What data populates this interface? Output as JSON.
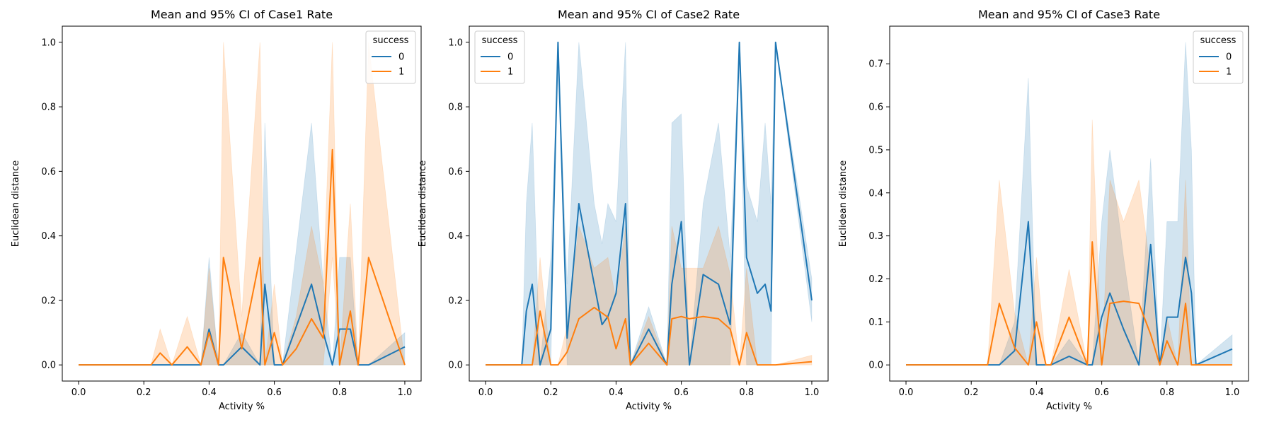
{
  "colors": {
    "series0": "#1f77b4",
    "series1": "#ff7f0e",
    "band0": "#1f77b4",
    "band1": "#ff7f0e"
  },
  "chart_data": [
    {
      "type": "line",
      "title": "Mean and 95% CI of Case1 Rate",
      "xlabel": "Activity %",
      "ylabel": "Euclidean distance",
      "xlim": [
        -0.05,
        1.05
      ],
      "ylim": [
        -0.05,
        1.05
      ],
      "xticks": [
        0.0,
        0.2,
        0.4,
        0.6,
        0.8,
        1.0
      ],
      "xtick_labels": [
        "0.0",
        "0.2",
        "0.4",
        "0.6",
        "0.8",
        "1.0"
      ],
      "yticks": [
        0.0,
        0.2,
        0.4,
        0.6,
        0.8,
        1.0
      ],
      "ytick_labels": [
        "0.0",
        "0.2",
        "0.4",
        "0.6",
        "0.8",
        "1.0"
      ],
      "legend": {
        "title": "success",
        "location": "upper right"
      },
      "series": [
        {
          "name": "0",
          "color": "#1f77b4",
          "x": [
            0.0,
            0.222,
            0.375,
            0.4,
            0.429,
            0.444,
            0.5,
            0.556,
            0.571,
            0.6,
            0.625,
            0.714,
            0.75,
            0.778,
            0.8,
            0.833,
            0.857,
            0.889,
            1.0
          ],
          "y": [
            0.0,
            0.0,
            0.0,
            0.111,
            0.0,
            0.0,
            0.056,
            0.0,
            0.25,
            0.0,
            0.0,
            0.25,
            0.1,
            0.0,
            0.111,
            0.111,
            0.0,
            0.0,
            0.056
          ],
          "ci_low": [
            0.0,
            0.0,
            0.0,
            0.0,
            0.0,
            0.0,
            0.0,
            0.0,
            0.0,
            0.0,
            0.0,
            0.0,
            0.0,
            0.0,
            0.0,
            0.0,
            0.0,
            0.0,
            0.0
          ],
          "ci_high": [
            0.0,
            0.0,
            0.0,
            0.333,
            0.0,
            0.0,
            0.1,
            0.0,
            0.75,
            0.0,
            0.0,
            0.75,
            0.25,
            0.0,
            0.333,
            0.333,
            0.0,
            0.0,
            0.1
          ]
        },
        {
          "name": "1",
          "color": "#ff7f0e",
          "x": [
            0.0,
            0.2,
            0.222,
            0.25,
            0.286,
            0.333,
            0.375,
            0.4,
            0.429,
            0.444,
            0.5,
            0.556,
            0.571,
            0.6,
            0.625,
            0.667,
            0.714,
            0.75,
            0.778,
            0.8,
            0.833,
            0.857,
            0.889,
            1.0
          ],
          "y": [
            0.0,
            0.0,
            0.0,
            0.037,
            0.0,
            0.056,
            0.0,
            0.1,
            0.0,
            0.333,
            0.05,
            0.333,
            0.0,
            0.1,
            0.0,
            0.05,
            0.143,
            0.083,
            0.667,
            0.0,
            0.167,
            0.0,
            0.333,
            0.0
          ],
          "ci_low": [
            0.0,
            0.0,
            0.0,
            0.0,
            0.0,
            0.0,
            0.0,
            0.0,
            0.0,
            0.0,
            0.0,
            0.0,
            0.0,
            0.0,
            0.0,
            0.0,
            0.0,
            0.0,
            0.333,
            0.0,
            0.0,
            0.0,
            0.0,
            0.0
          ],
          "ci_high": [
            0.0,
            0.0,
            0.0,
            0.111,
            0.0,
            0.15,
            0.0,
            0.3,
            0.0,
            1.0,
            0.15,
            1.0,
            0.0,
            0.25,
            0.0,
            0.15,
            0.43,
            0.25,
            1.0,
            0.0,
            0.5,
            0.0,
            1.0,
            0.0
          ]
        }
      ]
    },
    {
      "type": "line",
      "title": "Mean and 95% CI of Case2 Rate",
      "xlabel": "Activity %",
      "ylabel": "Euclidean distance",
      "xlim": [
        -0.05,
        1.05
      ],
      "ylim": [
        -0.05,
        1.05
      ],
      "xticks": [
        0.0,
        0.2,
        0.4,
        0.6,
        0.8,
        1.0
      ],
      "xtick_labels": [
        "0.0",
        "0.2",
        "0.4",
        "0.6",
        "0.8",
        "1.0"
      ],
      "yticks": [
        0.0,
        0.2,
        0.4,
        0.6,
        0.8,
        1.0
      ],
      "ytick_labels": [
        "0.0",
        "0.2",
        "0.4",
        "0.6",
        "0.8",
        "1.0"
      ],
      "legend": {
        "title": "success",
        "location": "upper left"
      },
      "series": [
        {
          "name": "0",
          "color": "#1f77b4",
          "x": [
            0.0,
            0.111,
            0.125,
            0.143,
            0.167,
            0.2,
            0.222,
            0.25,
            0.286,
            0.333,
            0.357,
            0.375,
            0.4,
            0.429,
            0.444,
            0.5,
            0.556,
            0.571,
            0.6,
            0.625,
            0.667,
            0.714,
            0.75,
            0.778,
            0.8,
            0.833,
            0.857,
            0.875,
            0.889,
            1.0
          ],
          "y": [
            0.0,
            0.0,
            0.167,
            0.25,
            0.0,
            0.111,
            1.0,
            0.083,
            0.5,
            0.25,
            0.125,
            0.15,
            0.222,
            0.5,
            0.0,
            0.111,
            0.0,
            0.25,
            0.444,
            0.0,
            0.28,
            0.25,
            0.125,
            1.0,
            0.333,
            0.222,
            0.25,
            0.167,
            1.0,
            0.2
          ],
          "ci_low": [
            0.0,
            0.0,
            0.0,
            0.0,
            0.0,
            0.0,
            1.0,
            0.0,
            0.0,
            0.0,
            0.0,
            0.0,
            0.0,
            0.0,
            0.0,
            0.0,
            0.0,
            0.0,
            0.0,
            0.0,
            0.0,
            0.0,
            0.0,
            1.0,
            0.0,
            0.0,
            0.0,
            0.0,
            1.0,
            0.133
          ],
          "ci_high": [
            0.0,
            0.0,
            0.5,
            0.75,
            0.0,
            0.333,
            1.0,
            0.25,
            1.0,
            0.5,
            0.375,
            0.5,
            0.444,
            1.0,
            0.0,
            0.18,
            0.0,
            0.75,
            0.778,
            0.0,
            0.5,
            0.75,
            0.333,
            1.0,
            0.556,
            0.444,
            0.75,
            0.5,
            1.0,
            0.267
          ]
        },
        {
          "name": "1",
          "color": "#ff7f0e",
          "x": [
            0.0,
            0.125,
            0.143,
            0.167,
            0.2,
            0.222,
            0.25,
            0.286,
            0.333,
            0.375,
            0.4,
            0.429,
            0.444,
            0.5,
            0.556,
            0.571,
            0.6,
            0.625,
            0.667,
            0.714,
            0.75,
            0.778,
            0.8,
            0.833,
            0.857,
            0.889,
            1.0
          ],
          "y": [
            0.0,
            0.0,
            0.0,
            0.167,
            0.0,
            0.0,
            0.04,
            0.143,
            0.178,
            0.148,
            0.05,
            0.143,
            0.0,
            0.067,
            0.0,
            0.143,
            0.15,
            0.143,
            0.15,
            0.143,
            0.111,
            0.0,
            0.1,
            0.0,
            0.0,
            0.0,
            0.01
          ],
          "ci_low": [
            0.0,
            0.0,
            0.0,
            0.0,
            0.0,
            0.0,
            0.0,
            0.0,
            0.0,
            0.0,
            0.0,
            0.0,
            0.0,
            0.0,
            0.0,
            0.0,
            0.0,
            0.0,
            0.0,
            0.0,
            0.0,
            0.0,
            0.0,
            0.0,
            0.0,
            0.0,
            0.0
          ],
          "ci_high": [
            0.0,
            0.0,
            0.0,
            0.333,
            0.0,
            0.0,
            0.12,
            0.43,
            0.3,
            0.333,
            0.2,
            0.43,
            0.0,
            0.15,
            0.0,
            0.43,
            0.3,
            0.3,
            0.3,
            0.43,
            0.28,
            0.0,
            0.3,
            0.0,
            0.0,
            0.0,
            0.03
          ]
        }
      ]
    },
    {
      "type": "line",
      "title": "Mean and 95% CI of Case3 Rate",
      "xlabel": "Activity %",
      "ylabel": "Euclidean distance",
      "xlim": [
        -0.05,
        1.05
      ],
      "ylim": [
        -0.0375,
        0.7875
      ],
      "xticks": [
        0.0,
        0.2,
        0.4,
        0.6,
        0.8,
        1.0
      ],
      "xtick_labels": [
        "0.0",
        "0.2",
        "0.4",
        "0.6",
        "0.8",
        "1.0"
      ],
      "yticks": [
        0.0,
        0.1,
        0.2,
        0.3,
        0.4,
        0.5,
        0.6,
        0.7
      ],
      "ytick_labels": [
        "0.0",
        "0.1",
        "0.2",
        "0.3",
        "0.4",
        "0.5",
        "0.6",
        "0.7"
      ],
      "legend": {
        "title": "success",
        "location": "upper right"
      },
      "series": [
        {
          "name": "0",
          "color": "#1f77b4",
          "x": [
            0.0,
            0.25,
            0.286,
            0.333,
            0.375,
            0.4,
            0.429,
            0.444,
            0.5,
            0.556,
            0.571,
            0.6,
            0.625,
            0.667,
            0.714,
            0.75,
            0.778,
            0.8,
            0.833,
            0.857,
            0.875,
            0.889,
            1.0
          ],
          "y": [
            0.0,
            0.0,
            0.0,
            0.033,
            0.333,
            0.0,
            0.0,
            0.0,
            0.02,
            0.0,
            0.0,
            0.111,
            0.167,
            0.083,
            0.0,
            0.28,
            0.0,
            0.111,
            0.111,
            0.25,
            0.167,
            0.0,
            0.037
          ],
          "ci_low": [
            0.0,
            0.0,
            0.0,
            0.0,
            0.0,
            0.0,
            0.0,
            0.0,
            0.0,
            0.0,
            0.0,
            0.0,
            0.0,
            0.0,
            0.0,
            0.0,
            0.0,
            0.0,
            0.0,
            0.0,
            0.0,
            0.0,
            0.0
          ],
          "ci_high": [
            0.0,
            0.0,
            0.0,
            0.1,
            0.667,
            0.0,
            0.0,
            0.0,
            0.06,
            0.0,
            0.0,
            0.333,
            0.5,
            0.25,
            0.0,
            0.48,
            0.0,
            0.333,
            0.333,
            0.75,
            0.5,
            0.0,
            0.07
          ]
        },
        {
          "name": "1",
          "color": "#ff7f0e",
          "x": [
            0.0,
            0.25,
            0.286,
            0.333,
            0.375,
            0.4,
            0.429,
            0.444,
            0.5,
            0.556,
            0.571,
            0.6,
            0.625,
            0.667,
            0.714,
            0.75,
            0.778,
            0.8,
            0.833,
            0.857,
            0.875,
            0.889,
            1.0
          ],
          "y": [
            0.0,
            0.0,
            0.143,
            0.04,
            0.0,
            0.1,
            0.0,
            0.0,
            0.111,
            0.0,
            0.286,
            0.0,
            0.143,
            0.148,
            0.143,
            0.071,
            0.0,
            0.056,
            0.0,
            0.143,
            0.0,
            0.0,
            0.0
          ],
          "ci_low": [
            0.0,
            0.0,
            0.0,
            0.0,
            0.0,
            0.0,
            0.0,
            0.0,
            0.0,
            0.0,
            0.0,
            0.0,
            0.0,
            0.0,
            0.0,
            0.0,
            0.0,
            0.0,
            0.0,
            0.0,
            0.0,
            0.0,
            0.0
          ],
          "ci_high": [
            0.0,
            0.0,
            0.43,
            0.12,
            0.0,
            0.25,
            0.0,
            0.0,
            0.222,
            0.0,
            0.57,
            0.0,
            0.43,
            0.333,
            0.43,
            0.214,
            0.0,
            0.111,
            0.0,
            0.43,
            0.0,
            0.0,
            0.0
          ]
        }
      ]
    }
  ]
}
